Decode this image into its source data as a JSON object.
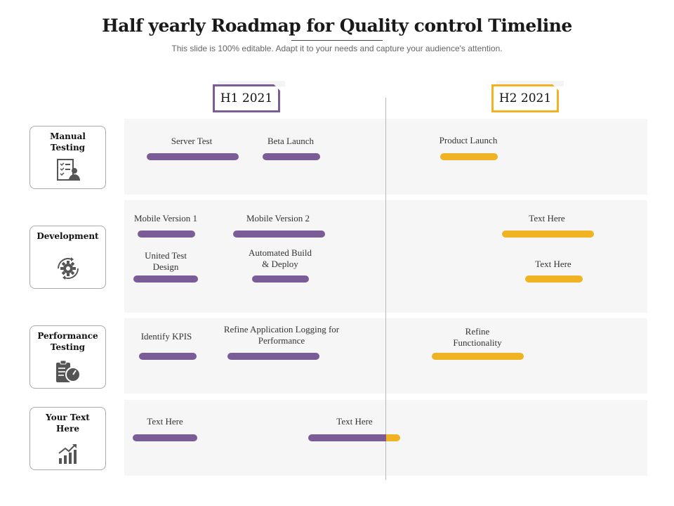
{
  "title": "Half yearly Roadmap for Quality control Timeline",
  "subtitle": "This slide is 100% editable. Adapt it to your needs and capture your audience's attention.",
  "periods": {
    "h1": "H1 2021",
    "h2": "H2 2021"
  },
  "colors": {
    "h1": "#7a5c96",
    "h2": "#f0b323",
    "lane": "#f6f6f6"
  },
  "categories": [
    {
      "label": "Manual Testing",
      "icon": "checklist-person-icon"
    },
    {
      "label": "Development",
      "icon": "gear-cycle-icon"
    },
    {
      "label": "Performance Testing",
      "icon": "clipboard-gauge-icon"
    },
    {
      "label": "Your Text Here",
      "icon": "growth-chart-icon"
    }
  ],
  "tasks": {
    "server_test": "Server Test",
    "beta_launch": "Beta Launch",
    "product_launch": "Product Launch",
    "mobile_v1": "Mobile Version 1",
    "mobile_v2": "Mobile Version 2",
    "dev_text_1": "Text Here",
    "united_test_design": "United Test Design",
    "automated_build": "Automated Build & Deploy",
    "dev_text_2": "Text Here",
    "identify_kpis": "Identify KPIS",
    "refine_logging": "Refine Application Logging for Performance",
    "refine_functionality": "Refine Functionality",
    "custom_text_1": "Text Here",
    "custom_text_2": "Text Here"
  }
}
